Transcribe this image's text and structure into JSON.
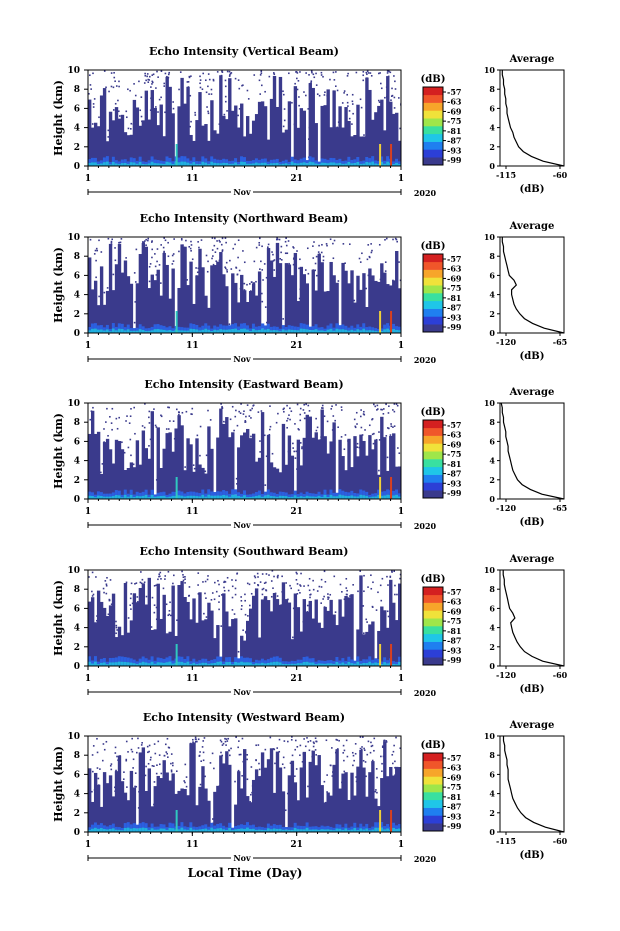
{
  "figure": {
    "xlabel": "Local Time (Day)",
    "colorbar_unit": "(dB)",
    "colorbar_ticks": [
      "-57",
      "-63",
      "-69",
      "-75",
      "-81",
      "-87",
      "-93",
      "-99"
    ],
    "colorbar_colors": [
      "#3a3a8c",
      "#2c3fd6",
      "#1f7ff0",
      "#1fc6e8",
      "#39e0a0",
      "#9fe64a",
      "#f0e23a",
      "#f7a52a",
      "#f0562a",
      "#d42020"
    ],
    "fill_color": "#3a3a8c"
  },
  "chart_data": [
    {
      "type": "heatmap",
      "title": "Echo Intensity (Vertical Beam)",
      "ylabel": "Height (km)",
      "ylim": [
        0,
        10
      ],
      "yticks": [
        "0",
        "2",
        "4",
        "6",
        "8",
        "10"
      ],
      "xticks": [
        "1",
        "11",
        "21",
        "1"
      ],
      "month_label": "Nov",
      "year_label": "2020",
      "avg_title": "Average",
      "avg_xlabel": "(dB)",
      "avg_xticks": [
        "-115",
        "-60"
      ],
      "avg_xlim": [
        -115,
        -60
      ],
      "avg_profile": {
        "height": [
          0,
          0.5,
          1,
          1.5,
          2,
          2.5,
          3,
          3.5,
          4,
          4.5,
          5,
          5.5,
          6,
          6.5,
          7,
          7.5,
          8,
          8.5,
          9,
          9.5,
          10
        ],
        "db": [
          -60,
          -78,
          -88,
          -95,
          -99,
          -101,
          -103,
          -104,
          -106,
          -107,
          -108,
          -109,
          -109,
          -110,
          -110,
          -111,
          -111,
          -112,
          -112,
          -113,
          -113
        ]
      }
    },
    {
      "type": "heatmap",
      "title": "Echo Intensity (Northward Beam)",
      "ylabel": "Height (km)",
      "ylim": [
        0,
        10
      ],
      "yticks": [
        "0",
        "2",
        "4",
        "6",
        "8",
        "10"
      ],
      "xticks": [
        "1",
        "11",
        "21",
        "1"
      ],
      "month_label": "Nov",
      "year_label": "2020",
      "avg_title": "Average",
      "avg_xlabel": "(dB)",
      "avg_xticks": [
        "-120",
        "-65"
      ],
      "avg_xlim": [
        -120,
        -65
      ],
      "avg_profile": {
        "height": [
          0,
          0.5,
          1,
          1.5,
          2,
          2.5,
          3,
          3.5,
          4,
          4.5,
          5,
          5.5,
          6,
          6.5,
          7,
          7.5,
          8,
          8.5,
          9,
          9.5,
          10
        ],
        "db": [
          -65,
          -82,
          -92,
          -99,
          -103,
          -106,
          -108,
          -109,
          -110,
          -110,
          -106,
          -108,
          -112,
          -113,
          -114,
          -115,
          -116,
          -117,
          -117,
          -118,
          -118
        ]
      }
    },
    {
      "type": "heatmap",
      "title": "Echo Intensity (Eastward Beam)",
      "ylabel": "Height (km)",
      "ylim": [
        0,
        10
      ],
      "yticks": [
        "0",
        "2",
        "4",
        "6",
        "8",
        "10"
      ],
      "xticks": [
        "1",
        "11",
        "21",
        "1"
      ],
      "month_label": "Nov",
      "year_label": "2020",
      "avg_title": "Average",
      "avg_xlabel": "(dB)",
      "avg_xticks": [
        "-120",
        "-65"
      ],
      "avg_xlim": [
        -120,
        -65
      ],
      "avg_profile": {
        "height": [
          0,
          0.5,
          1,
          1.5,
          2,
          2.5,
          3,
          3.5,
          4,
          4.5,
          5,
          5.5,
          6,
          6.5,
          7,
          7.5,
          8,
          8.5,
          9,
          9.5,
          10
        ],
        "db": [
          -65,
          -84,
          -94,
          -101,
          -105,
          -107,
          -109,
          -110,
          -111,
          -112,
          -113,
          -113,
          -114,
          -115,
          -115,
          -116,
          -117,
          -117,
          -118,
          -118,
          -119
        ]
      }
    },
    {
      "type": "heatmap",
      "title": "Echo Intensity (Southward Beam)",
      "ylabel": "Height (km)",
      "ylim": [
        0,
        10
      ],
      "yticks": [
        "0",
        "2",
        "4",
        "6",
        "8",
        "10"
      ],
      "xticks": [
        "1",
        "11",
        "21",
        "1"
      ],
      "month_label": "Nov",
      "year_label": "2020",
      "avg_title": "Average",
      "avg_xlabel": "(dB)",
      "avg_xticks": [
        "-120",
        "-60"
      ],
      "avg_xlim": [
        -120,
        -60
      ],
      "avg_profile": {
        "height": [
          0,
          0.5,
          1,
          1.5,
          2,
          2.5,
          3,
          3.5,
          4,
          4.5,
          5,
          5.5,
          6,
          6.5,
          7,
          7.5,
          8,
          8.5,
          9,
          9.5,
          10
        ],
        "db": [
          -60,
          -80,
          -90,
          -97,
          -101,
          -104,
          -106,
          -108,
          -109,
          -110,
          -106,
          -108,
          -111,
          -112,
          -113,
          -114,
          -115,
          -116,
          -116,
          -117,
          -117
        ]
      }
    },
    {
      "type": "heatmap",
      "title": "Echo Intensity (Westward Beam)",
      "ylabel": "Height (km)",
      "ylim": [
        0,
        10
      ],
      "yticks": [
        "0",
        "2",
        "4",
        "6",
        "8",
        "10"
      ],
      "xticks": [
        "1",
        "11",
        "21",
        "1"
      ],
      "month_label": "Nov",
      "year_label": "2020",
      "avg_title": "Average",
      "avg_xlabel": "(dB)",
      "avg_xticks": [
        "-115",
        "-60"
      ],
      "avg_xlim": [
        -115,
        -60
      ],
      "avg_profile": {
        "height": [
          0,
          0.5,
          1,
          1.5,
          2,
          2.5,
          3,
          3.5,
          4,
          4.5,
          5,
          5.5,
          6,
          6.5,
          7,
          7.5,
          8,
          8.5,
          9,
          9.5,
          10
        ],
        "db": [
          -60,
          -76,
          -86,
          -93,
          -97,
          -100,
          -102,
          -104,
          -105,
          -106,
          -107,
          -108,
          -108,
          -108,
          -109,
          -109,
          -110,
          -111,
          -111,
          -112,
          -112
        ]
      }
    }
  ]
}
